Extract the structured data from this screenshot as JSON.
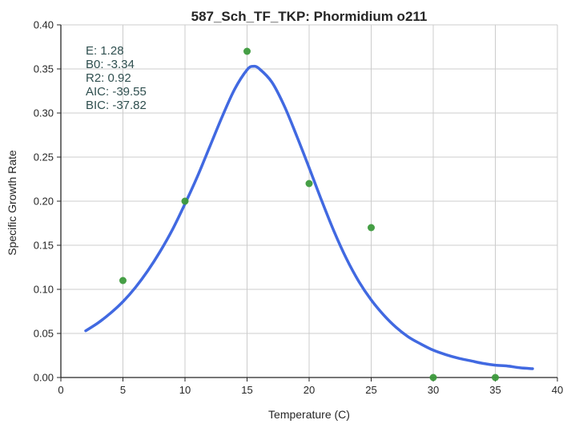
{
  "chart_data": {
    "type": "scatter",
    "title": "587_Sch_TF_TKP: Phormidium o211",
    "xlabel": "Temperature (C)",
    "ylabel": "Specific Growth Rate",
    "xlim": [
      0,
      40
    ],
    "ylim": [
      0,
      0.4
    ],
    "xticks": [
      "0",
      "5",
      "10",
      "15",
      "20",
      "25",
      "30",
      "35",
      "40"
    ],
    "yticks": [
      "0.00",
      "0.05",
      "0.10",
      "0.15",
      "0.20",
      "0.25",
      "0.30",
      "0.35",
      "0.40"
    ],
    "grid": true,
    "annotations": [
      "E:  1.28",
      "B0:  -3.34",
      "R2:  0.92",
      "AIC: -39.55",
      "BIC: -37.82"
    ],
    "points": {
      "color": "#3c9a3c",
      "x": [
        5,
        10,
        15,
        20,
        25,
        30,
        35
      ],
      "y": [
        0.11,
        0.2,
        0.37,
        0.22,
        0.17,
        0.0,
        0.0
      ]
    },
    "fit_curve": {
      "color": "#4169e1",
      "x": [
        2,
        3,
        4,
        5,
        6,
        7,
        8,
        9,
        10,
        11,
        12,
        13,
        14,
        15,
        15.5,
        16,
        17,
        18,
        19,
        20,
        21,
        22,
        23,
        24,
        25,
        26,
        27,
        28,
        29,
        30,
        31,
        32,
        33,
        34,
        35,
        36,
        37,
        38
      ],
      "y": [
        0.053,
        0.062,
        0.073,
        0.086,
        0.102,
        0.121,
        0.143,
        0.168,
        0.197,
        0.228,
        0.262,
        0.296,
        0.327,
        0.349,
        0.353,
        0.35,
        0.335,
        0.308,
        0.274,
        0.238,
        0.201,
        0.166,
        0.135,
        0.109,
        0.088,
        0.071,
        0.057,
        0.046,
        0.038,
        0.031,
        0.026,
        0.022,
        0.019,
        0.016,
        0.014,
        0.013,
        0.011,
        0.01
      ]
    }
  }
}
